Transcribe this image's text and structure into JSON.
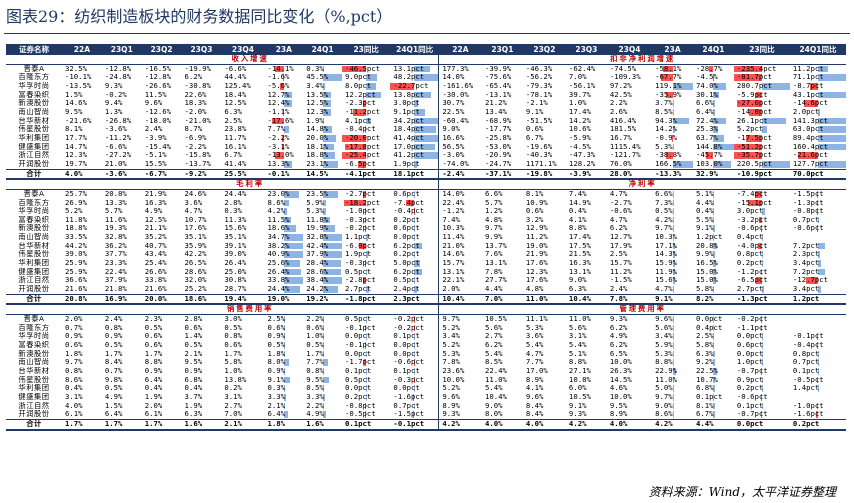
{
  "title": "图表29：纺织制造板块的财务数据同比变化（%,pct）",
  "footer": "资料来源：Wind，太平洋证券整理",
  "header": [
    "证券名称",
    "22A",
    "23Q1",
    "23Q2",
    "23Q3",
    "23Q4",
    "23A",
    "24Q1",
    "23同比",
    "24Q1同比",
    "22A",
    "23Q1",
    "23Q2",
    "23Q3",
    "23Q4",
    "23A",
    "24Q1",
    "23同比",
    "24Q1同比"
  ],
  "sections": [
    {
      "left_label": "收入增速",
      "right_label": "扣非净利润增速",
      "rows": [
        {
          "name": "晋泰A",
          "v": [
            "32.5%",
            "-12.8%",
            "-16.5%",
            "-19.9%",
            "-6.6%",
            "-14.1%",
            "0.3%",
            "-46.5pct",
            "13.1pct",
            "177.3%",
            "-39.9%",
            "-46.3%",
            "-62.4%",
            "-74.5%",
            "-58.1%",
            "-28.7%",
            "-235.4pct",
            "11.2pct"
          ]
        },
        {
          "name": "百隆东方",
          "v": [
            "-10.1%",
            "-24.8%",
            "-12.8%",
            "6.2%",
            "44.4%",
            "-1.6%",
            "45.5%",
            "9.0pct",
            "48.2pct",
            "14.0%",
            "-75.6%",
            "-56.2%",
            "7.0%",
            "-109.3%",
            "-67.7%",
            "-4.5%",
            "-81.7pct",
            "71.1pct"
          ]
        },
        {
          "name": "华孚时尚",
          "v": [
            "-13.5%",
            "9.3%",
            "-26.6%",
            "-30.8%",
            "125.4%",
            "-5.6%",
            "3.4%",
            "8.0pct",
            "-22.7pct",
            "-161.6%",
            "-65.4%",
            "-79.3%",
            "-56.1%",
            "97.2%",
            "119.1%",
            "74.0%",
            "280.7pct",
            "-8.7pct"
          ]
        },
        {
          "name": "富春染织",
          "v": [
            "1.5%",
            "-0.2%",
            "11.5%",
            "22.6%",
            "18.4%",
            "12.7%",
            "13.5%",
            "12.2pct",
            "13.8pct",
            "-30.0%",
            "-13.1%",
            "-78.1%",
            "39.7%",
            "42.5%",
            "-35.9%",
            "30.1%",
            "-5.9pct",
            "43.1pct"
          ]
        },
        {
          "name": "新澳股份",
          "v": [
            "14.6%",
            "9.4%",
            "9.6%",
            "18.3%",
            "12.5%",
            "12.4%",
            "12.5%",
            "-2.3pct",
            "3.0pct",
            "30.7%",
            "21.2%",
            "-2.1%",
            "1.0%",
            "2.2%",
            "3.7%",
            "6.6%",
            "-27.0pct",
            "-14.6pct"
          ]
        },
        {
          "name": "南山智尚",
          "v": [
            "9.5%",
            "1.3%",
            "-12.6%",
            "-2.0%",
            "6.3%",
            "-1.1%",
            "12.3%",
            "-11.2pct",
            "9.1pct",
            "22.5%",
            "13.4%",
            "9.1%",
            "17.4%",
            "2.6%",
            "8.5%",
            "6.4%",
            "-14.0pct",
            "2.0pct"
          ]
        },
        {
          "name": "台华新材",
          "v": [
            "-21.6%",
            "-26.8%",
            "-18.0%",
            "-21.0%",
            "2.5%",
            "-17.6%",
            "1.9%",
            "4.1pct",
            "34.2pct",
            "-60.4%",
            "-68.9%",
            "-51.5%",
            "14.2%",
            "416.4%",
            "94.3%",
            "72.4%",
            "26.1pct",
            "141.3pct"
          ]
        },
        {
          "name": "伟星股份",
          "v": [
            "8.1%",
            "-3.6%",
            "2.4%",
            "8.7%",
            "23.8%",
            "7.7%",
            "14.8%",
            "-0.4pct",
            "18.4pct",
            "9.0%",
            "-17.7%",
            "0.6%",
            "10.6%",
            "181.5%",
            "14.2%",
            "25.3%",
            "5.2pct",
            "63.0pct"
          ]
        },
        {
          "name": "华利集团",
          "v": [
            "17.7%",
            "-11.2%",
            "-3.9%",
            "-6.9%",
            "11.7%",
            "-2.2%",
            "20.0%",
            "-20.0pct",
            "41.4pct",
            "16.6%",
            "-25.8%",
            "6.7%",
            "-5.9%",
            "16.7%",
            "-0.9%",
            "63.7%",
            "-17.5pct",
            "89.4pct"
          ]
        },
        {
          "name": "健盛集团",
          "v": [
            "14.7%",
            "-6.6%",
            "-15.4%",
            "-2.2%",
            "16.1%",
            "-3.1%",
            "18.1%",
            "-17.8pct",
            "17.0pct",
            "56.5%",
            "-53.0%",
            "-19.6%",
            "-4.5%",
            "1115.4%",
            "5.3%",
            "144.8%",
            "-51.2pct",
            "160.4pct"
          ]
        },
        {
          "name": "浙江自然",
          "v": [
            "12.3%",
            "-27.2%",
            "-5.1%",
            "-15.8%",
            "6.7%",
            "-13.0%",
            "18.8%",
            "-25.4pct",
            "41.2pct",
            "-3.0%",
            "-20.9%",
            "-40.3%",
            "-47.3%",
            "-121.7%",
            "-38.8%",
            "-45.7%",
            "-35.7pct",
            "-21.6pct"
          ]
        },
        {
          "name": "开润股份",
          "v": [
            "19.7%",
            "21.0%",
            "15.5%",
            "-13.7%",
            "41.4%",
            "13.3%",
            "23.1%",
            "-6.5pct",
            "1.9pct",
            "-74.0%",
            "-24.7%",
            "1171.1%",
            "128.2%",
            "76.0%",
            "166.5%",
            "103.0%",
            "220.5pct",
            "127.7pct"
          ]
        },
        {
          "name": "合计",
          "total": true,
          "v": [
            "4.0%",
            "-3.6%",
            "-6.7%",
            "-9.2%",
            "25.5%",
            "-0.1%",
            "14.5%",
            "-4.1pct",
            "18.1pct",
            "-2.4%",
            "-37.1%",
            "-19.8%",
            "-3.9%",
            "28.0%",
            "-13.3%",
            "32.9%",
            "-10.9pct",
            "70.0pct"
          ]
        }
      ]
    },
    {
      "left_label": "毛利率",
      "right_label": "净利率",
      "rows": [
        {
          "name": "晋泰A",
          "v": [
            "25.7%",
            "20.8%",
            "21.9%",
            "24.6%",
            "24.4%",
            "23.0%",
            "23.5%",
            "-2.7pct",
            "0.6pct",
            "14.0%",
            "6.6%",
            "8.1%",
            "7.4%",
            "4.7%",
            "6.6%",
            "5.1%",
            "-7.4pct",
            "-1.5pct"
          ]
        },
        {
          "name": "百隆东方",
          "v": [
            "26.9%",
            "13.3%",
            "16.3%",
            "3.6%",
            "2.8%",
            "8.6%",
            "5.9%",
            "-18.2pct",
            "-7.4pct",
            "22.4%",
            "5.7%",
            "10.9%",
            "14.9%",
            "-2.7%",
            "7.3%",
            "4.4%",
            "-15.1pct",
            "-1.3pct"
          ]
        },
        {
          "name": "华孚时尚",
          "v": [
            "5.2%",
            "5.7%",
            "4.9%",
            "4.7%",
            "0.3%",
            "4.2%",
            "5.3%",
            "-1.0pct",
            "-0.4pct",
            "-1.2%",
            "1.2%",
            "0.6%",
            "0.4%",
            "-0.6%",
            "0.5%",
            "0.4%",
            "3.0pct",
            "-0.8pct"
          ]
        },
        {
          "name": "富春染织",
          "v": [
            "11.8%",
            "11.6%",
            "12.5%",
            "10.7%",
            "11.3%",
            "11.5%",
            "11.8%",
            "-0.3pct",
            "0.2pct",
            "7.4%",
            "4.8%",
            "3.2%",
            "4.1%",
            "4.7%",
            "4.2%",
            "5.5%",
            "-3.2pct",
            "0.7pct"
          ]
        },
        {
          "name": "新澳股份",
          "v": [
            "18.8%",
            "19.3%",
            "21.1%",
            "17.6%",
            "15.6%",
            "18.6%",
            "19.9%",
            "-0.2pct",
            "0.6pct",
            "10.3%",
            "9.7%",
            "12.9%",
            "8.8%",
            "6.2%",
            "9.7%",
            "9.1%",
            "-0.6pct",
            "-0.6pct"
          ]
        },
        {
          "name": "南山智尚",
          "v": [
            "33.5%",
            "32.8%",
            "35.2%",
            "35.1%",
            "35.1%",
            "34.7%",
            "32.8%",
            "1.1pct",
            "0.0pct",
            "11.4%",
            "9.9%",
            "11.2%",
            "17.4%",
            "12.7%",
            "10.3%",
            "1.2pct",
            "0.4pct",
            ""
          ]
        },
        {
          "name": "台华新材",
          "v": [
            "44.2%",
            "36.2%",
            "40.7%",
            "35.9%",
            "39.1%",
            "38.2%",
            "42.4%",
            "-6.0pct",
            "6.2pct",
            "21.0%",
            "13.7%",
            "19.0%",
            "17.5%",
            "17.9%",
            "17.1%",
            "20.8%",
            "-4.0pct",
            "7.2pct"
          ]
        },
        {
          "name": "伟星股份",
          "v": [
            "39.0%",
            "37.7%",
            "43.4%",
            "42.2%",
            "39.0%",
            "40.9%",
            "37.9%",
            "1.9pct",
            "0.2pct",
            "14.6%",
            "7.6%",
            "21.9%",
            "21.5%",
            "2.5%",
            "14.3%",
            "9.9%",
            "0.8pct",
            "2.3pct"
          ]
        },
        {
          "name": "华利集团",
          "v": [
            "25.9%",
            "23.3%",
            "25.4%",
            "26.5%",
            "26.4%",
            "25.6%",
            "28.4%",
            "-0.3pct",
            "5.0pct",
            "15.7%",
            "13.1%",
            "17.6%",
            "16.3%",
            "15.7%",
            "15.9%",
            "16.5%",
            "0.2pct",
            "3.4pct"
          ]
        },
        {
          "name": "健盛集团",
          "v": [
            "25.9%",
            "22.4%",
            "26.6%",
            "28.6%",
            "25.0%",
            "26.4%",
            "28.6%",
            "0.5pct",
            "6.2pct",
            "13.1%",
            "7.8%",
            "12.3%",
            "13.1%",
            "11.2%",
            "11.9%",
            "15.0%",
            "-1.2pct",
            "7.2pct"
          ]
        },
        {
          "name": "浙江自然",
          "v": [
            "36.6%",
            "37.9%",
            "33.8%",
            "32.0%",
            "30.8%",
            "33.8%",
            "38.4%",
            "-2.8pct",
            "0.5pct",
            "22.1%",
            "27.7%",
            "17.6%",
            "9.0%",
            "-1.5%",
            "15.6%",
            "15.0%",
            "-6.5pct",
            "-12.7pct"
          ]
        },
        {
          "name": "开润股份",
          "v": [
            "21.6%",
            "21.8%",
            "21.6%",
            "25.2%",
            "28.7%",
            "24.4%",
            "24.2%",
            "2.7pct",
            "2.4pct",
            "2.0%",
            "4.4%",
            "4.8%",
            "6.3%",
            "2.4%",
            "4.7%",
            "5.8%",
            "2.7pct",
            "3.4pct"
          ]
        },
        {
          "name": "合计",
          "total": true,
          "v": [
            "20.8%",
            "16.9%",
            "20.0%",
            "18.6%",
            "19.4%",
            "19.0%",
            "19.2%",
            "-1.8pct",
            "2.3pct",
            "10.4%",
            "7.0%",
            "11.0%",
            "10.4%",
            "7.8%",
            "9.1%",
            "8.2%",
            "-1.3pct",
            "1.2pct"
          ]
        }
      ]
    },
    {
      "left_label": "销售费用率",
      "right_label": "管理费用率",
      "rows": [
        {
          "name": "晋泰A",
          "v": [
            "2.0%",
            "2.4%",
            "2.3%",
            "2.8%",
            "3.0%",
            "2.5%",
            "2.2%",
            "0.5pct",
            "-0.2pct",
            "9.7%",
            "10.5%",
            "11.1%",
            "11.0%",
            "9.3%",
            "9.6%",
            "0.0pct",
            "-0.2pct",
            ""
          ]
        },
        {
          "name": "百隆东方",
          "v": [
            "0.7%",
            "0.8%",
            "0.5%",
            "0.6%",
            "0.5%",
            "0.6%",
            "0.6%",
            "-0.1pct",
            "-0.2pct",
            "5.2%",
            "5.6%",
            "5.3%",
            "5.6%",
            "6.2%",
            "5.6%",
            "0.4pct",
            "-1.1pct",
            ""
          ]
        },
        {
          "name": "华孚时尚",
          "v": [
            "0.9%",
            "0.9%",
            "0.6%",
            "1.4%",
            "0.8%",
            "0.9%",
            "1.0%",
            "0.0pct",
            "0.1pct",
            "3.4%",
            "2.7%",
            "3.6%",
            "3.1%",
            "4.9%",
            "3.4%",
            "2.5%",
            "0.0pct",
            "-0.1pct"
          ]
        },
        {
          "name": "富春染织",
          "v": [
            "0.6%",
            "0.5%",
            "0.6%",
            "0.5%",
            "0.6%",
            "0.5%",
            "0.5%",
            "-0.1pct",
            "0.0pct",
            "5.2%",
            "6.2%",
            "5.4%",
            "5.4%",
            "6.2%",
            "5.9%",
            "5.8%",
            "0.6pct",
            "-0.4pct"
          ]
        },
        {
          "name": "新澳股份",
          "v": [
            "1.8%",
            "1.7%",
            "1.7%",
            "2.1%",
            "1.7%",
            "1.8%",
            "1.7%",
            "0.0pct",
            "0.0pct",
            "5.3%",
            "5.4%",
            "4.7%",
            "5.1%",
            "6.5%",
            "5.3%",
            "6.3%",
            "0.0pct",
            "0.8pct"
          ]
        },
        {
          "name": "南山智尚",
          "v": [
            "9.7%",
            "8.4%",
            "8.8%",
            "9.5%",
            "5.8%",
            "8.0%",
            "7.7%",
            "-1.7pct",
            "-0.6pct",
            "7.8%",
            "8.5%",
            "7.7%",
            "8.8%",
            "10.0%",
            "8.8%",
            "9.2%",
            "1.0pct",
            "0.7pct"
          ]
        },
        {
          "name": "台华新材",
          "v": [
            "0.8%",
            "0.7%",
            "0.9%",
            "0.9%",
            "1.0%",
            "0.9%",
            "0.8%",
            "0.1pct",
            "0.1pct",
            "23.6%",
            "22.4%",
            "17.0%",
            "27.1%",
            "26.3%",
            "22.9%",
            "22.5%",
            "-0.7pct",
            "0.1pct"
          ]
        },
        {
          "name": "伟星股份",
          "v": [
            "8.6%",
            "9.8%",
            "6.4%",
            "6.8%",
            "13.8%",
            "9.1%",
            "9.5%",
            "0.5pct",
            "-0.3pct",
            "10.0%",
            "11.0%",
            "8.9%",
            "10.8%",
            "14.5%",
            "11.0%",
            "10.7%",
            "0.9pct",
            "-0.5pct"
          ]
        },
        {
          "name": "华利集团",
          "v": [
            "0.4%",
            "0.5%",
            "0.4%",
            "0.4%",
            "0.2%",
            "0.3%",
            "0.5%",
            "0.0pct",
            "0.0pct",
            "5.2%",
            "5.4%",
            "4.1%",
            "6.0%",
            "4.6%",
            "5.0%",
            "6.8%",
            "0.2pct",
            "1.4pct"
          ]
        },
        {
          "name": "健盛集团",
          "v": [
            "3.1%",
            "4.9%",
            "1.9%",
            "3.7%",
            "3.1%",
            "3.3%",
            "3.3%",
            "0.2pct",
            "-1.6pct",
            "9.6%",
            "10.4%",
            "9.6%",
            "10.5%",
            "10.0%",
            "9.7%",
            "0.1pct",
            "-0.6pct",
            ""
          ]
        },
        {
          "name": "浙江自然",
          "v": [
            "4.0%",
            "1.5%",
            "2.0%",
            "1.9%",
            "2.7%",
            "2.1%",
            "2.2%",
            "-0.8pct",
            "0.7pct",
            "8.9%",
            "9.0%",
            "8.4%",
            "9.1%",
            "9.5%",
            "9.0%",
            "8.1%",
            "0.1pct",
            "-1.0pct"
          ]
        },
        {
          "name": "开润股份",
          "v": [
            "6.1%",
            "6.4%",
            "6.1%",
            "6.3%",
            "7.0%",
            "6.4%",
            "4.9%",
            "-0.5pct",
            "-1.5pct",
            "9.3%",
            "8.0%",
            "8.4%",
            "9.3%",
            "8.9%",
            "8.6%",
            "6.7%",
            "-0.7pct",
            "-1.6pct"
          ]
        },
        {
          "name": "合计",
          "total": true,
          "v": [
            "1.7%",
            "1.7%",
            "1.7%",
            "1.6%",
            "2.1%",
            "1.8%",
            "1.6%",
            "0.1pct",
            "-0.1pct",
            "4.2%",
            "4.0%",
            "4.0%",
            "4.2%",
            "4.0%",
            "4.2%",
            "4.4%",
            "0.0pct",
            "0.2pct"
          ]
        }
      ]
    }
  ],
  "colors": {
    "header_bg": "#1f3864",
    "positive_bar": "#8db4e2",
    "negative_bar": "#ff5050",
    "highlight_cell": "#dbe5f1",
    "section_label": "#c00000"
  }
}
